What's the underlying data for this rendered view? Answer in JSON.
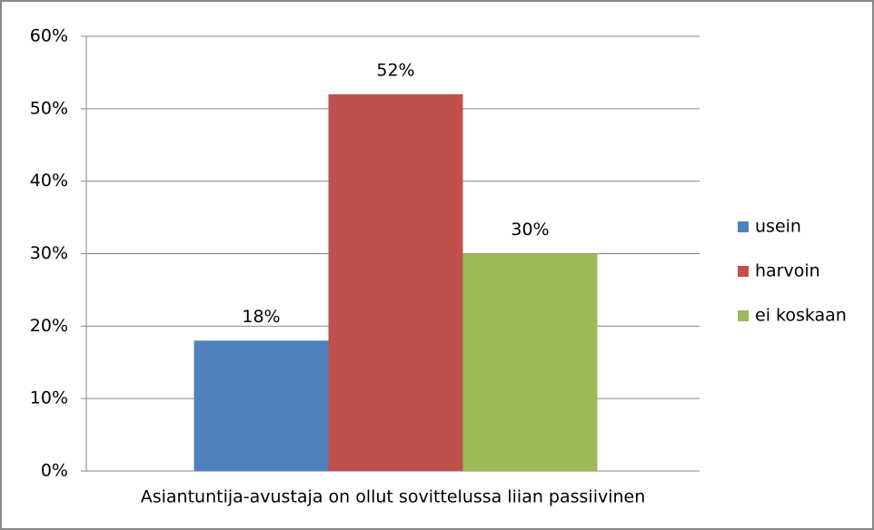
{
  "chart_data": {
    "type": "bar",
    "categories": [
      "Asiantuntija-avustaja on ollut sovittelussa liian passiivinen"
    ],
    "series": [
      {
        "name": "usein",
        "color": "#4f81bd",
        "values": [
          18
        ],
        "value_labels": [
          "18%"
        ]
      },
      {
        "name": "harvoin",
        "color": "#c0504d",
        "values": [
          52
        ],
        "value_labels": [
          "52%"
        ]
      },
      {
        "name": "ei koskaan",
        "color": "#9bbb59",
        "values": [
          30
        ],
        "value_labels": [
          "30%"
        ]
      }
    ],
    "ylim": [
      0,
      60
    ],
    "yticks": [
      {
        "value": 0,
        "label": "0%"
      },
      {
        "value": 10,
        "label": "10%"
      },
      {
        "value": 20,
        "label": "20%"
      },
      {
        "value": 30,
        "label": "30%"
      },
      {
        "value": 40,
        "label": "40%"
      },
      {
        "value": 50,
        "label": "50%"
      },
      {
        "value": 60,
        "label": "60%"
      }
    ],
    "grid": true,
    "legend": "right"
  }
}
